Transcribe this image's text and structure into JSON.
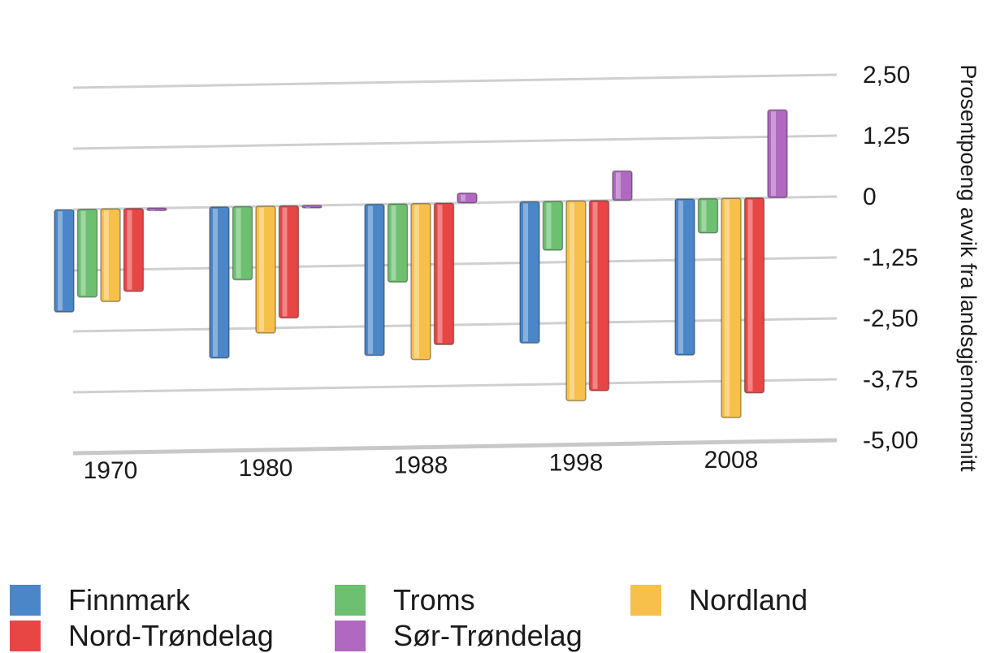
{
  "chart_data": {
    "type": "bar",
    "title": "",
    "xlabel": "",
    "ylabel": "Prosentpoeng avvik fra landsgjennomsnitt",
    "ylim": [
      -5.0,
      2.5
    ],
    "yticks": [
      2.5,
      1.25,
      0,
      -1.25,
      -2.5,
      -3.75,
      -5.0
    ],
    "ytick_labels": [
      "2,50",
      "1,25",
      "0",
      "-1,25",
      "-2,50",
      "-3,75",
      "-5,00"
    ],
    "categories": [
      "1970",
      "1980",
      "1988",
      "1998",
      "2008"
    ],
    "series": [
      {
        "name": "Finnmark",
        "color": "#4a86c8",
        "values": [
          -2.1,
          -3.1,
          -3.1,
          -2.9,
          -3.2
        ]
      },
      {
        "name": "Troms",
        "color": "#6cc070",
        "values": [
          -1.8,
          -1.5,
          -1.6,
          -1.0,
          -0.7
        ]
      },
      {
        "name": "Nordland",
        "color": "#f7c04a",
        "values": [
          -1.9,
          -2.6,
          -3.2,
          -4.1,
          -4.5
        ]
      },
      {
        "name": "Nord-Trøndelag",
        "color": "#e84545",
        "values": [
          -1.7,
          -2.3,
          -2.9,
          -3.9,
          -4.0
        ]
      },
      {
        "name": "Sør-Trøndelag",
        "color": "#b068c0",
        "values": [
          -0.05,
          -0.05,
          0.2,
          0.6,
          1.8
        ]
      }
    ],
    "grid": true,
    "legend_position": "bottom"
  }
}
